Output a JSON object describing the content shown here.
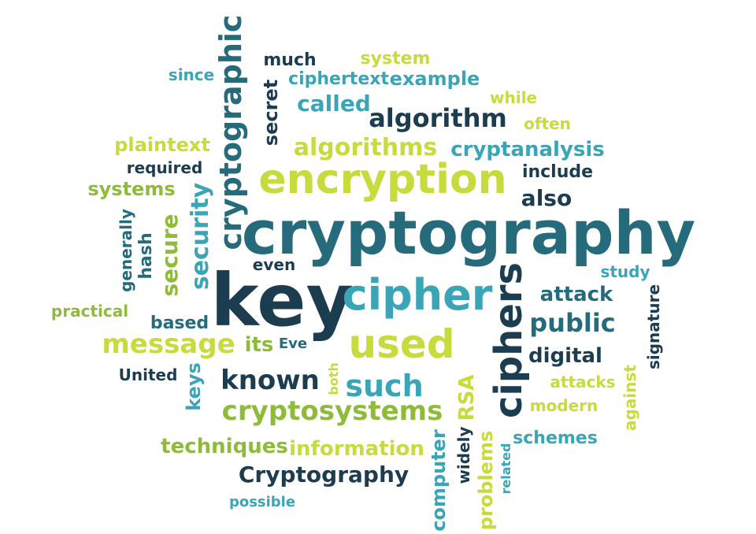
{
  "words": [
    {
      "text": "cryptography",
      "color": "teal"
    },
    {
      "text": "key",
      "color": "navy"
    },
    {
      "text": "encryption",
      "color": "lime"
    },
    {
      "text": "cipher",
      "color": "aqua"
    },
    {
      "text": "used",
      "color": "lime"
    },
    {
      "text": "ciphers",
      "color": "navy"
    },
    {
      "text": "cryptographic",
      "color": "teal"
    },
    {
      "text": "algorithm",
      "color": "navy"
    },
    {
      "text": "algorithms",
      "color": "lime"
    },
    {
      "text": "cryptanalysis",
      "color": "aqua"
    },
    {
      "text": "message",
      "color": "lime"
    },
    {
      "text": "known",
      "color": "navy"
    },
    {
      "text": "such",
      "color": "aqua"
    },
    {
      "text": "public",
      "color": "teal"
    },
    {
      "text": "cryptosystems",
      "color": "green"
    },
    {
      "text": "Cryptography",
      "color": "navy"
    },
    {
      "text": "techniques",
      "color": "green"
    },
    {
      "text": "information",
      "color": "lime"
    },
    {
      "text": "security",
      "color": "aqua"
    },
    {
      "text": "secure",
      "color": "green"
    },
    {
      "text": "attack",
      "color": "teal"
    },
    {
      "text": "digital",
      "color": "navy"
    },
    {
      "text": "also",
      "color": "navy"
    },
    {
      "text": "include",
      "color": "navy"
    },
    {
      "text": "called",
      "color": "aqua"
    },
    {
      "text": "ciphertext",
      "color": "aqua"
    },
    {
      "text": "example",
      "color": "aqua"
    },
    {
      "text": "system",
      "color": "lime"
    },
    {
      "text": "much",
      "color": "navy"
    },
    {
      "text": "since",
      "color": "aqua"
    },
    {
      "text": "while",
      "color": "lime"
    },
    {
      "text": "often",
      "color": "lime"
    },
    {
      "text": "plaintext",
      "color": "lime"
    },
    {
      "text": "required",
      "color": "navy"
    },
    {
      "text": "systems",
      "color": "green"
    },
    {
      "text": "secret",
      "color": "navy"
    },
    {
      "text": "generally",
      "color": "teal"
    },
    {
      "text": "hash",
      "color": "teal"
    },
    {
      "text": "even",
      "color": "navy"
    },
    {
      "text": "study",
      "color": "aqua"
    },
    {
      "text": "practical",
      "color": "green"
    },
    {
      "text": "based",
      "color": "teal"
    },
    {
      "text": "its",
      "color": "green"
    },
    {
      "text": "Eve",
      "color": "teal"
    },
    {
      "text": "signature",
      "color": "navy"
    },
    {
      "text": "United",
      "color": "navy"
    },
    {
      "text": "keys",
      "color": "aqua"
    },
    {
      "text": "both",
      "color": "lime"
    },
    {
      "text": "RSA",
      "color": "lime"
    },
    {
      "text": "attacks",
      "color": "lime"
    },
    {
      "text": "modern",
      "color": "lime"
    },
    {
      "text": "against",
      "color": "lime"
    },
    {
      "text": "schemes",
      "color": "aqua"
    },
    {
      "text": "computer",
      "color": "aqua"
    },
    {
      "text": "widely",
      "color": "navy"
    },
    {
      "text": "problems",
      "color": "lime"
    },
    {
      "text": "related",
      "color": "aqua"
    },
    {
      "text": "possible",
      "color": "aqua"
    }
  ],
  "palette": {
    "navy": "#1b3d4f",
    "teal": "#256b7c",
    "aqua": "#3aa5b6",
    "lime": "#c6dc3c",
    "green": "#8fbb3a",
    "background": "#ffffff"
  }
}
